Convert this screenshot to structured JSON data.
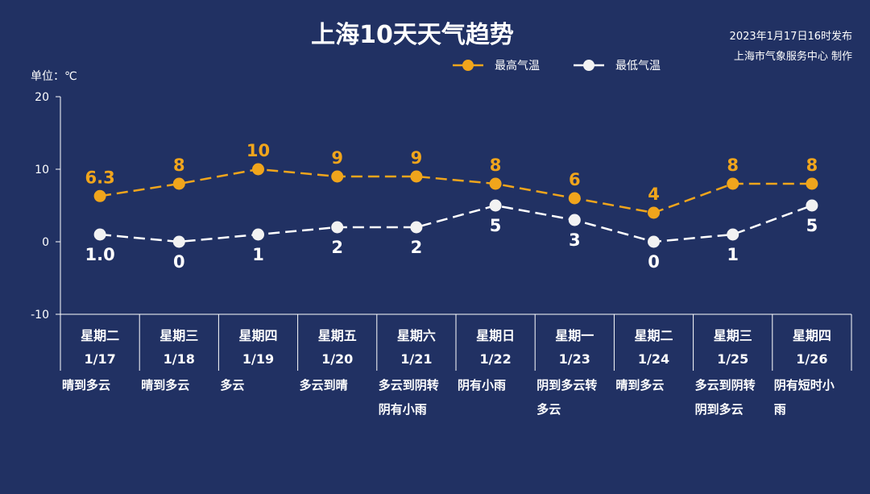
{
  "header": {
    "title": "上海10天天气趋势",
    "issued": "2023年1月17日16时发布",
    "publisher": "上海市气象服务中心 制作"
  },
  "legend": {
    "high_label": "最高气温",
    "low_label": "最低气温"
  },
  "colors": {
    "background": "#213163",
    "high": "#f0a51c",
    "low": "#ffffff"
  },
  "chart_data": {
    "type": "line",
    "unit_label": "单位：℃",
    "ylim": [
      -10,
      20
    ],
    "yticks": [
      "20",
      "10",
      "0",
      "-10"
    ],
    "categories": [
      "1/17",
      "1/18",
      "1/19",
      "1/20",
      "1/21",
      "1/22",
      "1/23",
      "1/24",
      "1/25",
      "1/26"
    ],
    "weekdays": [
      "星期二",
      "星期三",
      "星期四",
      "星期五",
      "星期六",
      "星期日",
      "星期一",
      "星期二",
      "星期三",
      "星期四"
    ],
    "weather": [
      [
        "晴到多云"
      ],
      [
        "晴到多云"
      ],
      [
        "多云"
      ],
      [
        "多云到晴"
      ],
      [
        "多云到阴转",
        "阴有小雨"
      ],
      [
        "阴有小雨"
      ],
      [
        "阴到多云转",
        "多云"
      ],
      [
        "晴到多云"
      ],
      [
        "多云到阴转",
        "阴到多云"
      ],
      [
        "阴有短时小",
        "雨"
      ]
    ],
    "series": [
      {
        "name": "最高气温",
        "values": [
          6.3,
          8,
          10,
          9,
          9,
          8,
          6,
          4,
          8,
          8
        ],
        "labels": [
          "6.3",
          "8",
          "10",
          "9",
          "9",
          "8",
          "6",
          "4",
          "8",
          "8"
        ]
      },
      {
        "name": "最低气温",
        "values": [
          1.0,
          0,
          1,
          2,
          2,
          5,
          3,
          0,
          1,
          5
        ],
        "labels": [
          "1.0",
          "0",
          "1",
          "2",
          "2",
          "5",
          "3",
          "0",
          "1",
          "5"
        ]
      }
    ],
    "grid": false,
    "legend_position": "top-center"
  }
}
